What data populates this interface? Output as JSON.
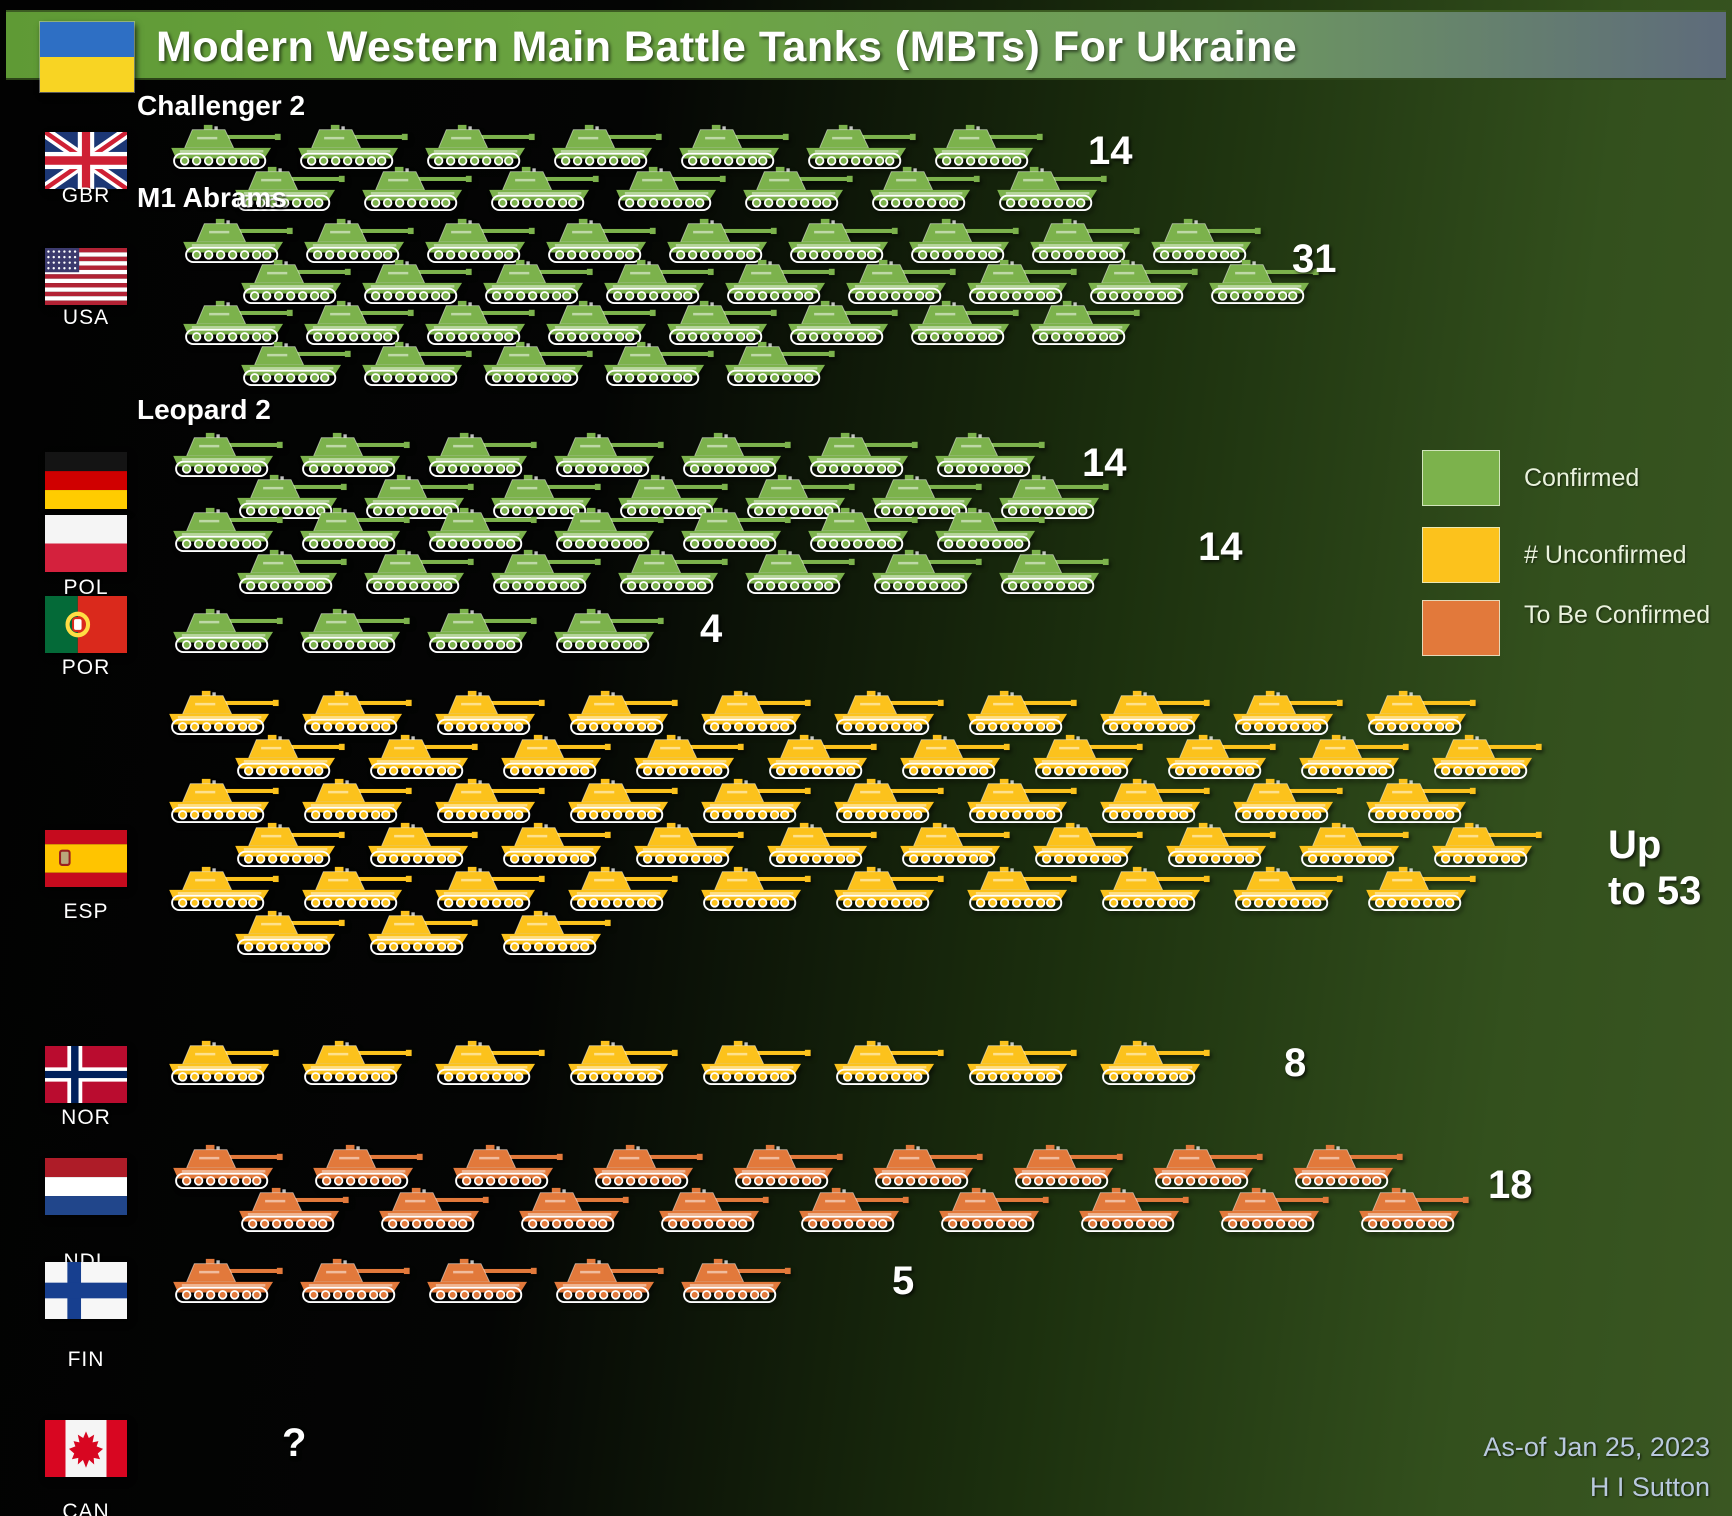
{
  "header": {
    "title": "Modern Western Main Battle Tanks (MBTs) For Ukraine",
    "flag": "UKR"
  },
  "legend": {
    "items": [
      {
        "key": "confirmed",
        "label": "Confirmed",
        "color": "#7cb24c"
      },
      {
        "key": "unconfirmed",
        "label": "# Unconfirmed",
        "color": "#fcc21c"
      },
      {
        "key": "to_be_confirmed",
        "label": "To Be Confirmed",
        "color": "#e2793b"
      }
    ]
  },
  "colors": {
    "confirmed": "#7cb24c",
    "unconfirmed": "#fcc21c",
    "to_be_confirmed": "#e2793b",
    "unknown": "#888888"
  },
  "countries": [
    {
      "code": "GBR",
      "tank_label": "Challenger 2",
      "status": "confirmed",
      "count_label": "14",
      "total": 14,
      "rows": [
        7,
        7
      ]
    },
    {
      "code": "USA",
      "tank_label": "M1 Abrams",
      "status": "confirmed",
      "count_label": "31",
      "total": 31,
      "rows": [
        9,
        9,
        8,
        5
      ]
    },
    {
      "code": "GER",
      "tank_label": "Leopard 2",
      "status": "confirmed",
      "count_label": "14",
      "total": 14,
      "rows": [
        7,
        7
      ]
    },
    {
      "code": "POL",
      "tank_label": "",
      "status": "confirmed",
      "count_label": "14",
      "total": 14,
      "rows": [
        7,
        7
      ]
    },
    {
      "code": "POR",
      "tank_label": "",
      "status": "confirmed",
      "count_label": "4",
      "total": 4,
      "rows": [
        4
      ]
    },
    {
      "code": "ESP",
      "tank_label": "",
      "status": "unconfirmed",
      "count_label": "Up to 53",
      "total": 53,
      "rows": [
        10,
        10,
        10,
        10,
        10,
        3
      ]
    },
    {
      "code": "NOR",
      "tank_label": "",
      "status": "unconfirmed",
      "count_label": "8",
      "total": 8,
      "rows": [
        8
      ]
    },
    {
      "code": "NDL",
      "tank_label": "",
      "status": "to_be_confirmed",
      "count_label": "18",
      "total": 18,
      "rows": [
        9,
        9
      ]
    },
    {
      "code": "FIN",
      "tank_label": "",
      "status": "to_be_confirmed",
      "count_label": "5",
      "total": 5,
      "rows": [
        5
      ]
    },
    {
      "code": "CAN",
      "tank_label": "",
      "status": "unknown",
      "count_label": "?",
      "total": null,
      "rows": []
    }
  ],
  "footer": {
    "date": "As-of Jan 25, 2023",
    "author": "H I Sutton"
  },
  "chart_data": {
    "type": "bar",
    "style": "pictogram (1 tank icon = 1 tank)",
    "title": "Modern Western Main Battle Tanks (MBTs) For Ukraine",
    "categories": [
      "GBR",
      "USA",
      "GER",
      "POL",
      "POR",
      "ESP",
      "NOR",
      "NDL",
      "FIN",
      "CAN"
    ],
    "values": [
      14,
      31,
      14,
      14,
      4,
      53,
      8,
      18,
      5,
      null
    ],
    "value_labels": [
      "14",
      "31",
      "14",
      "14",
      "4",
      "Up to 53",
      "8",
      "18",
      "5",
      "?"
    ],
    "tank_types": [
      "Challenger 2",
      "M1 Abrams",
      "Leopard 2",
      "Leopard 2",
      "Leopard 2",
      "Leopard 2",
      "Leopard 2",
      "Leopard 2",
      "Leopard 2",
      "Leopard 2"
    ],
    "statuses": [
      "Confirmed",
      "Confirmed",
      "Confirmed",
      "Confirmed",
      "Confirmed",
      "# Unconfirmed",
      "# Unconfirmed",
      "To Be Confirmed",
      "To Be Confirmed",
      "Unknown"
    ],
    "legend": [
      {
        "label": "Confirmed",
        "color": "#7cb24c"
      },
      {
        "label": "# Unconfirmed",
        "color": "#fcc21c"
      },
      {
        "label": "To Be Confirmed",
        "color": "#e2793b"
      }
    ],
    "legend_position": "right",
    "annotations": [
      "As-of Jan 25, 2023",
      "H I Sutton"
    ]
  }
}
